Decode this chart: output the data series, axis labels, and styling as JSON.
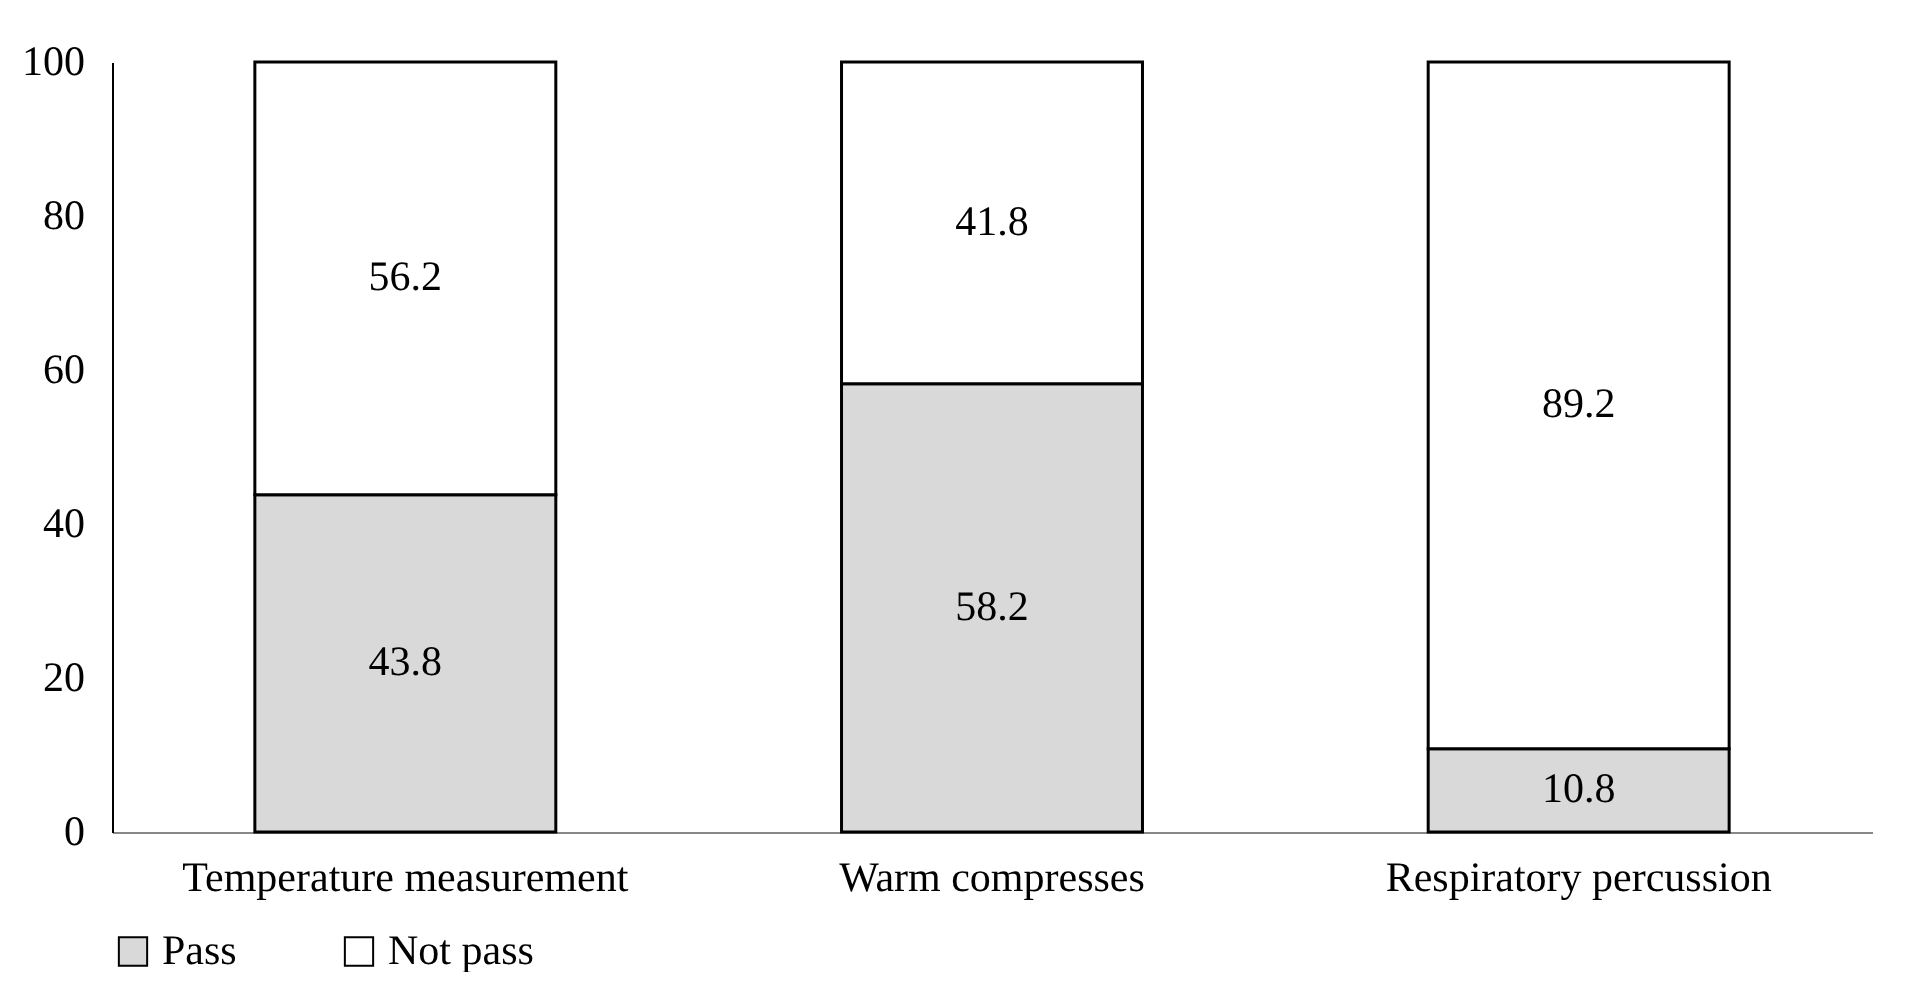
{
  "chart_data": {
    "type": "bar",
    "stacked": true,
    "categories": [
      "Temperature measurement",
      "Warm compresses",
      "Respiratory percussion"
    ],
    "series": [
      {
        "name": "Pass",
        "color": "#d9d9d9",
        "values": [
          43.8,
          58.2,
          10.8
        ]
      },
      {
        "name": "Not pass",
        "color": "#ffffff",
        "values": [
          56.2,
          41.8,
          89.2
        ]
      }
    ],
    "ylim": [
      0,
      100
    ],
    "yticks": [
      0,
      20,
      40,
      60,
      80,
      100
    ],
    "grid": false,
    "legend": "bottom",
    "data_labels": true
  }
}
